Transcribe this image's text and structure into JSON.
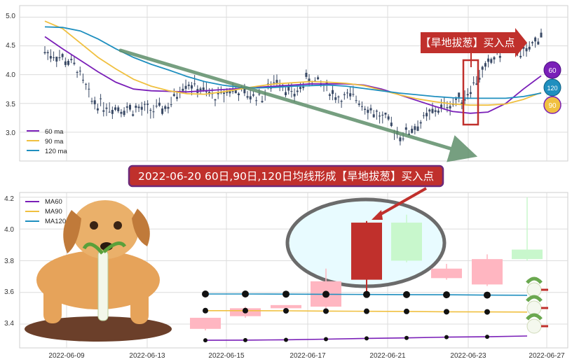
{
  "colors": {
    "ma60": "#7a1fb8",
    "ma90": "#f0c040",
    "ma120": "#1f8fbf",
    "candle": "#3a4a66",
    "up_candle": "#c0302c",
    "banner_fill": "#c0302c",
    "arrow": "#5f8f6a",
    "grid": "#dcdcdc",
    "ellipse_fill": "#e8fbff",
    "ellipse_stroke": "#6b6b6b"
  },
  "top_chart": {
    "ylim": [
      2.5,
      5.2
    ],
    "yticks": [
      "5.0",
      "4.5",
      "4.0",
      "3.5",
      "3.0"
    ],
    "legend": [
      "60 ma",
      "90 ma",
      "120 ma"
    ],
    "annotation": "【旱地拔葱】买入点",
    "badges": [
      "60",
      "120",
      "90"
    ]
  },
  "title_banner": "2022-06-20 60日,90日,120日均线形成【旱地拔葱】买入点",
  "bottom_chart": {
    "ylim": [
      3.25,
      4.23
    ],
    "yticks": [
      "4.2",
      "4.0",
      "3.8",
      "3.6",
      "3.4"
    ],
    "legend": [
      "MA60",
      "MA90",
      "MA120"
    ],
    "xticks": [
      "2022-06-09",
      "2022-06-13",
      "2022-06-15",
      "2022-06-17",
      "2022-06-21",
      "2022-06-23",
      "2022-06-27"
    ]
  },
  "chart_data": [
    {
      "type": "line",
      "title": "",
      "ylim": [
        2.5,
        5.2
      ],
      "series": [
        {
          "name": "60 ma",
          "values": [
            4.66,
            4.45,
            4.25,
            4.05,
            3.87,
            3.75,
            3.72,
            3.71,
            3.7,
            3.72,
            3.74,
            3.76,
            3.78,
            3.8,
            3.82,
            3.84,
            3.84,
            3.84,
            3.82,
            3.75,
            3.65,
            3.55,
            3.45,
            3.36,
            3.33,
            3.35,
            3.5,
            3.75,
            3.98
          ]
        },
        {
          "name": "90 ma",
          "values": [
            4.93,
            4.8,
            4.55,
            4.3,
            4.1,
            3.92,
            3.8,
            3.72,
            3.67,
            3.66,
            3.7,
            3.75,
            3.8,
            3.84,
            3.86,
            3.88,
            3.87,
            3.85,
            3.81,
            3.73,
            3.65,
            3.58,
            3.53,
            3.49,
            3.47,
            3.47,
            3.49,
            3.57,
            3.69
          ]
        },
        {
          "name": "120 ma",
          "values": [
            4.83,
            4.82,
            4.76,
            4.62,
            4.45,
            4.3,
            4.18,
            4.08,
            3.97,
            3.88,
            3.82,
            3.78,
            3.77,
            3.78,
            3.8,
            3.81,
            3.82,
            3.8,
            3.76,
            3.72,
            3.68,
            3.65,
            3.62,
            3.6,
            3.59,
            3.59,
            3.59,
            3.62,
            3.68
          ]
        },
        {
          "name": "price",
          "values": [
            4.4,
            4.3,
            4.15,
            3.55,
            3.45,
            3.42,
            3.4,
            3.38,
            3.45,
            3.88,
            3.75,
            3.6,
            3.75,
            3.65,
            3.62,
            3.95,
            3.62,
            3.95,
            3.8,
            3.58,
            3.62,
            3.38,
            3.2,
            2.93,
            3.12,
            3.35,
            3.48,
            3.6,
            3.98,
            4.3,
            4.55,
            4.35,
            4.72
          ]
        }
      ]
    },
    {
      "type": "candlestick",
      "ylim": [
        3.25,
        4.23
      ],
      "x": [
        "2022-06-14",
        "2022-06-15",
        "2022-06-16",
        "2022-06-17",
        "2022-06-20",
        "2022-06-21",
        "2022-06-22",
        "2022-06-23",
        "2022-06-24"
      ],
      "candles": [
        {
          "open": 3.44,
          "close": 3.37,
          "high": 3.44,
          "low": 3.36
        },
        {
          "open": 3.5,
          "close": 3.45,
          "high": 3.51,
          "low": 3.44
        },
        {
          "open": 3.52,
          "close": 3.5,
          "high": 3.52,
          "low": 3.49
        },
        {
          "open": 3.67,
          "close": 3.51,
          "high": 3.75,
          "low": 3.49
        },
        {
          "open": 3.68,
          "close": 4.04,
          "high": 4.05,
          "low": 3.6
        },
        {
          "open": 4.04,
          "close": 3.8,
          "high": 4.09,
          "low": 3.79
        },
        {
          "open": 3.75,
          "close": 3.69,
          "high": 3.78,
          "low": 3.68
        },
        {
          "open": 3.81,
          "close": 3.65,
          "high": 3.84,
          "low": 3.64
        },
        {
          "open": 3.87,
          "close": 3.81,
          "high": 4.2,
          "low": 3.8
        }
      ],
      "series": [
        {
          "name": "MA60",
          "values": [
            3.298,
            3.299,
            3.301,
            3.305,
            3.31,
            3.313,
            3.318,
            3.32,
            3.325
          ]
        },
        {
          "name": "MA90",
          "values": [
            3.485,
            3.485,
            3.484,
            3.482,
            3.481,
            3.48,
            3.478,
            3.477,
            3.476
          ]
        },
        {
          "name": "MA120",
          "values": [
            3.59,
            3.59,
            3.589,
            3.588,
            3.587,
            3.586,
            3.585,
            3.583,
            3.582
          ]
        }
      ]
    }
  ]
}
